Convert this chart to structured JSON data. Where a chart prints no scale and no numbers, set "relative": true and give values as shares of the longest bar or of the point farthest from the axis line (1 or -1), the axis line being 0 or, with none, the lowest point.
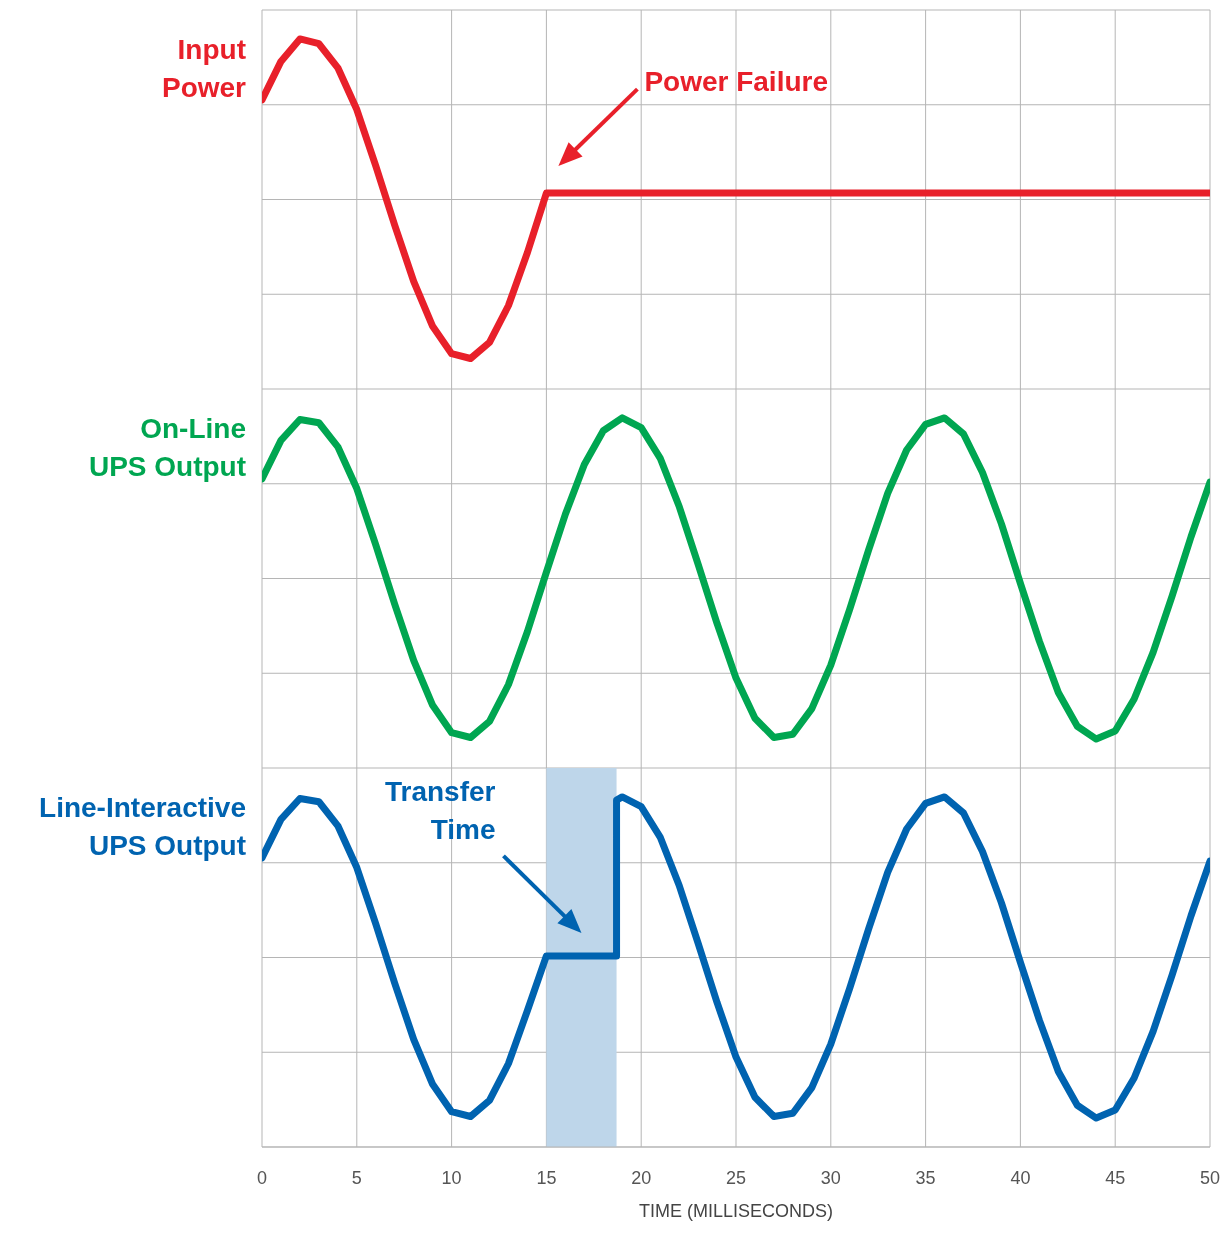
{
  "chart_data": [
    {
      "type": "line",
      "relative": true,
      "xlim": [
        0,
        50
      ],
      "xticks": [
        0,
        5,
        10,
        15,
        20,
        25,
        30,
        35,
        40,
        45,
        50
      ],
      "grid": true,
      "tick_labels": false,
      "series": [
        {
          "name": "Input Power",
          "color": "#e8202a",
          "x": [
            0,
            1,
            2,
            3,
            4,
            5,
            6,
            7,
            8,
            9,
            10,
            11,
            12,
            13,
            14,
            15,
            50
          ],
          "values": [
            0.62,
            0.86,
            1.0,
            0.97,
            0.82,
            0.56,
            0.21,
            -0.16,
            -0.51,
            -0.79,
            -0.96,
            -0.99,
            -0.89,
            -0.66,
            -0.33,
            0.04,
            0.04
          ]
        }
      ],
      "annotations": [
        "Power Failure"
      ]
    },
    {
      "type": "line",
      "relative": true,
      "xlim": [
        0,
        50
      ],
      "xticks": [
        0,
        5,
        10,
        15,
        20,
        25,
        30,
        35,
        40,
        45,
        50
      ],
      "grid": true,
      "tick_labels": false,
      "series": [
        {
          "name": "On-Line UPS Output",
          "color": "#00a651",
          "x": [
            0,
            1,
            2,
            3,
            4,
            5,
            6,
            7,
            8,
            9,
            10,
            11,
            12,
            13,
            14,
            15,
            16,
            17,
            18,
            19,
            20,
            21,
            22,
            23,
            24,
            25,
            26,
            27,
            28,
            29,
            30,
            31,
            32,
            33,
            34,
            35,
            36,
            37,
            38,
            39,
            40,
            41,
            42,
            43,
            44,
            45,
            46,
            47,
            48,
            49,
            50
          ],
          "values": [
            0.62,
            0.86,
            0.99,
            0.97,
            0.82,
            0.56,
            0.21,
            -0.16,
            -0.51,
            -0.79,
            -0.96,
            -0.99,
            -0.89,
            -0.66,
            -0.33,
            0.04,
            0.4,
            0.71,
            0.92,
            1.0,
            0.94,
            0.75,
            0.45,
            0.09,
            -0.28,
            -0.62,
            -0.87,
            -0.99,
            -0.97,
            -0.81,
            -0.54,
            -0.19,
            0.18,
            0.53,
            0.8,
            0.96,
            1.0,
            0.9,
            0.66,
            0.34,
            -0.03,
            -0.39,
            -0.71,
            -0.92,
            -1.0,
            -0.95,
            -0.75,
            -0.46,
            -0.11,
            0.26,
            0.6
          ]
        }
      ]
    },
    {
      "type": "line",
      "relative": true,
      "xlim": [
        0,
        50
      ],
      "xticks": [
        0,
        5,
        10,
        15,
        20,
        25,
        30,
        35,
        40,
        45,
        50
      ],
      "grid": true,
      "tick_labels": "x",
      "xlabel": "TIME (MILLISECONDS)",
      "series": [
        {
          "name": "Line-Interactive UPS Output",
          "color": "#0063b0",
          "x": [
            0,
            1,
            2,
            3,
            4,
            5,
            6,
            7,
            8,
            9,
            10,
            11,
            12,
            13,
            14,
            15,
            18.7,
            18.7,
            19,
            20,
            21,
            22,
            23,
            24,
            25,
            26,
            27,
            28,
            29,
            30,
            31,
            32,
            33,
            34,
            35,
            36,
            37,
            38,
            39,
            40,
            41,
            42,
            43,
            44,
            45,
            46,
            47,
            48,
            49,
            50
          ],
          "values": [
            0.62,
            0.86,
            0.99,
            0.97,
            0.82,
            0.56,
            0.21,
            -0.16,
            -0.51,
            -0.79,
            -0.96,
            -0.99,
            -0.89,
            -0.66,
            -0.33,
            0.01,
            0.01,
            0.98,
            1.0,
            0.94,
            0.75,
            0.45,
            0.09,
            -0.28,
            -0.62,
            -0.87,
            -0.99,
            -0.97,
            -0.81,
            -0.54,
            -0.19,
            0.18,
            0.53,
            0.8,
            0.96,
            1.0,
            0.9,
            0.66,
            0.34,
            -0.03,
            -0.39,
            -0.71,
            -0.92,
            -1.0,
            -0.95,
            -0.75,
            -0.46,
            -0.11,
            0.26,
            0.6
          ]
        }
      ],
      "bands": [
        {
          "axis": "x",
          "from": 15,
          "to": 18.7,
          "color": "#bed6ea"
        }
      ],
      "annotations": [
        "Transfer Time"
      ]
    }
  ]
}
